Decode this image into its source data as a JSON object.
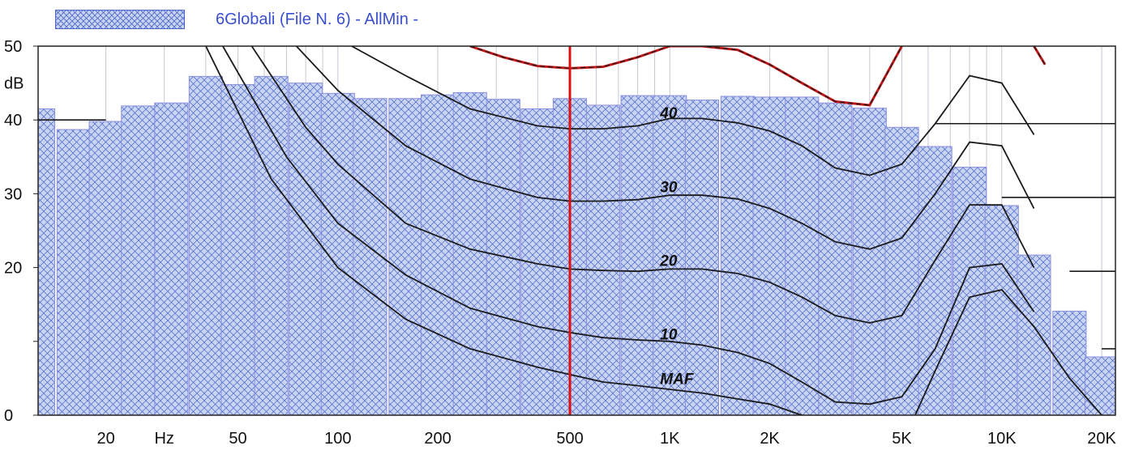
{
  "legend": {
    "label": "6Globali (File N. 6) - AllMin -"
  },
  "colors": {
    "bar_fill": "#c8d4f2",
    "bar_hatch": "#4a64c8",
    "bar_edge": "#8a8fe0",
    "curve": "#1a1a1a",
    "cursor": "#e01010",
    "envelope": "#c01818",
    "frame": "#222222",
    "grid": "#c8c8d2"
  },
  "chart_data": {
    "type": "bar",
    "title": "6Globali (File N. 6) - AllMin -",
    "xscale": "log",
    "xlim": [
      12.5,
      22000
    ],
    "ylim": [
      0,
      50
    ],
    "y_ticks": [
      0,
      10,
      20,
      30,
      40,
      50
    ],
    "y_tick_labels": [
      "0",
      "",
      "20",
      "30",
      "40",
      "50"
    ],
    "y_unit_label": "dB",
    "x_tick_labels": [
      {
        "x": 20,
        "label": "20"
      },
      {
        "x": 30,
        "label": "Hz"
      },
      {
        "x": 50,
        "label": "50"
      },
      {
        "x": 100,
        "label": "100"
      },
      {
        "x": 200,
        "label": "200"
      },
      {
        "x": 500,
        "label": "500"
      },
      {
        "x": 1000,
        "label": "1K"
      },
      {
        "x": 2000,
        "label": "2K"
      },
      {
        "x": 5000,
        "label": "5K"
      },
      {
        "x": 10000,
        "label": "10K"
      },
      {
        "x": 20000,
        "label": "20K"
      }
    ],
    "grid": "vertical",
    "cursor_x": 500,
    "bars": {
      "centers": [
        12.5,
        16,
        20,
        25,
        31.5,
        40,
        50,
        63,
        80,
        100,
        125,
        160,
        200,
        250,
        315,
        400,
        500,
        630,
        800,
        1000,
        1250,
        1600,
        2000,
        2500,
        3150,
        4000,
        5000,
        6300,
        8000,
        10000,
        12500,
        16000,
        20000
      ],
      "values": [
        41.5,
        38.7,
        39.8,
        41.9,
        42.3,
        45.9,
        44.8,
        45.9,
        45.0,
        43.6,
        42.9,
        42.9,
        43.4,
        43.7,
        42.8,
        41.5,
        42.9,
        42.0,
        43.3,
        43.3,
        42.7,
        43.2,
        43.1,
        43.1,
        42.3,
        41.6,
        39.0,
        36.4,
        33.6,
        28.4,
        21.7,
        14.1,
        7.9
      ]
    },
    "horizontal_marks": [
      {
        "y": 40,
        "x": [
          12.5,
          20
        ]
      },
      {
        "y": 39.5,
        "x": [
          6300,
          22000
        ]
      },
      {
        "y": 29.5,
        "x": [
          10000,
          22000
        ]
      },
      {
        "y": 19.5,
        "x": [
          16000,
          22000
        ]
      },
      {
        "y": 9,
        "x": [
          20000,
          22000
        ]
      }
    ],
    "series": [
      {
        "name": "MAF",
        "label_x": 1000,
        "label_y": 5,
        "x": [
          40,
          63,
          100,
          160,
          250,
          400,
          500,
          630,
          800,
          1000,
          1250,
          1600,
          2000,
          2500,
          3150,
          4000,
          5000,
          6300,
          8000,
          10000,
          12500,
          16000,
          20000
        ],
        "y": [
          50,
          32,
          20,
          13,
          9,
          6.5,
          5.5,
          4.5,
          4,
          3.5,
          3,
          2.2,
          1.5,
          0,
          -2,
          -4,
          -4,
          6,
          16,
          17,
          12,
          5,
          0
        ]
      },
      {
        "name": "10",
        "label_x": 1000,
        "label_y": 11,
        "x": [
          45,
          70,
          100,
          160,
          250,
          400,
          500,
          630,
          800,
          1000,
          1250,
          1600,
          2000,
          2500,
          3150,
          4000,
          5000,
          6300,
          8000,
          10000,
          12500
        ],
        "y": [
          50,
          35,
          26,
          19,
          14.5,
          12,
          11.2,
          10.5,
          10.2,
          10,
          9.5,
          8.5,
          7,
          4.5,
          1.8,
          1.5,
          2.5,
          9,
          20,
          20.5,
          14
        ]
      },
      {
        "name": "20",
        "label_x": 1000,
        "label_y": 21,
        "x": [
          55,
          80,
          100,
          160,
          250,
          400,
          500,
          630,
          800,
          1000,
          1250,
          1600,
          2000,
          2500,
          3150,
          4000,
          5000,
          6300,
          8000,
          10000,
          12500
        ],
        "y": [
          50,
          39,
          34,
          26,
          22.5,
          20.5,
          19.8,
          19.6,
          19.5,
          19.8,
          19.8,
          19.2,
          18,
          16,
          13.5,
          12.5,
          13.5,
          21,
          28.5,
          28.5,
          20
        ]
      },
      {
        "name": "30",
        "label_x": 1000,
        "label_y": 31,
        "x": [
          75,
          100,
          160,
          250,
          400,
          500,
          630,
          800,
          1000,
          1250,
          1600,
          2000,
          2500,
          3150,
          4000,
          5000,
          6300,
          8000,
          10000,
          12500
        ],
        "y": [
          50,
          44,
          36.5,
          32,
          29.5,
          29,
          29,
          29.2,
          29.8,
          29.8,
          29.3,
          28,
          26,
          23.5,
          22.5,
          24,
          30,
          37,
          36.5,
          28
        ]
      },
      {
        "name": "40",
        "label_x": 1000,
        "label_y": 41,
        "x": [
          110,
          160,
          250,
          400,
          500,
          630,
          800,
          1000,
          1250,
          1600,
          2000,
          2500,
          3150,
          4000,
          5000,
          6300,
          8000,
          10000,
          12500
        ],
        "y": [
          50,
          46,
          41.5,
          39.2,
          38.8,
          38.8,
          39.2,
          40.2,
          40.2,
          39.6,
          38.5,
          36.5,
          33.5,
          32.5,
          34,
          39.5,
          46,
          45,
          38
        ]
      },
      {
        "name": "",
        "envelope": true,
        "x": [
          250,
          315,
          400,
          500,
          630,
          800,
          1000,
          1250,
          1600,
          2000,
          2500,
          3150,
          4000,
          5000
        ],
        "y": [
          50,
          48.5,
          47.3,
          47.0,
          47.2,
          48.5,
          50,
          50,
          49.5,
          47.5,
          45,
          42.5,
          42,
          50
        ]
      },
      {
        "name": "",
        "envelope": true,
        "x": [
          12500,
          13500
        ],
        "y": [
          50,
          47.5
        ]
      }
    ],
    "curve_labels": [
      "40",
      "30",
      "20",
      "10",
      "MAF"
    ]
  }
}
